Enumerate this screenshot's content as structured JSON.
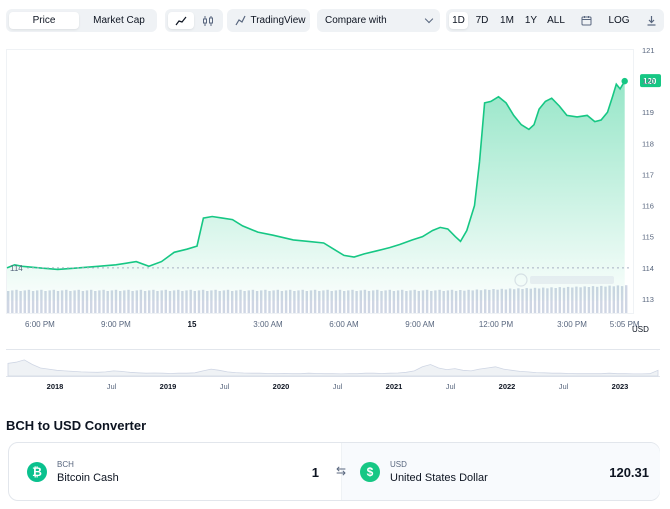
{
  "toolbar": {
    "price_tab": "Price",
    "market_cap_tab": "Market Cap",
    "line_icon": "line-chart-icon",
    "candle_icon": "candlestick-icon",
    "tradingview_label": "TradingView",
    "tradingview_icon": "trend-icon",
    "compare_label": "Compare with",
    "ranges": [
      "1D",
      "7D",
      "1M",
      "1Y",
      "ALL"
    ],
    "active_range": "1D",
    "calendar_icon": "calendar-icon",
    "log_label": "LOG",
    "download_icon": "download-icon"
  },
  "colors": {
    "line": "#16c784",
    "area": "#16c784",
    "volume": "#cfd6e4",
    "axis_text": "#58667e"
  },
  "chart_data": {
    "type": "area",
    "x_tick_labels": [
      "6:00 PM",
      "9:00 PM",
      "15",
      "3:00 AM",
      "6:00 AM",
      "9:00 AM",
      "12:00 PM",
      "3:00 PM",
      "5:05 PM"
    ],
    "x_tick_hours": [
      0,
      3,
      6,
      9,
      12,
      15,
      18,
      21,
      23.08
    ],
    "x_range_hours": [
      -1.3,
      23.25
    ],
    "y_tick_labels": [
      "121",
      "120",
      "119",
      "118",
      "117",
      "116",
      "115",
      "114",
      "113"
    ],
    "ylim": [
      112.55,
      121.0
    ],
    "y_unit": "USD",
    "open_price": 114.0,
    "open_label": "114",
    "last_price": 120.0,
    "last_label": "120",
    "series": [
      {
        "values": [
          [
            -1.3,
            114.0
          ],
          [
            -1.0,
            114.1
          ],
          [
            -0.7,
            114.05
          ],
          [
            0.0,
            114.0
          ],
          [
            0.7,
            113.95
          ],
          [
            1.5,
            114.0
          ],
          [
            2.3,
            114.05
          ],
          [
            3.0,
            114.1
          ],
          [
            3.8,
            114.2
          ],
          [
            4.3,
            114.05
          ],
          [
            4.8,
            114.2
          ],
          [
            5.3,
            114.5
          ],
          [
            5.8,
            114.6
          ],
          [
            6.2,
            114.7
          ],
          [
            6.45,
            115.6
          ],
          [
            6.8,
            115.65
          ],
          [
            7.2,
            115.6
          ],
          [
            7.6,
            115.55
          ],
          [
            8.0,
            115.35
          ],
          [
            8.6,
            115.15
          ],
          [
            9.2,
            115.05
          ],
          [
            10.0,
            114.9
          ],
          [
            10.6,
            114.85
          ],
          [
            11.2,
            114.8
          ],
          [
            11.6,
            114.6
          ],
          [
            12.0,
            114.4
          ],
          [
            12.4,
            114.35
          ],
          [
            12.8,
            114.45
          ],
          [
            13.3,
            114.55
          ],
          [
            13.8,
            114.65
          ],
          [
            14.2,
            114.75
          ],
          [
            14.7,
            114.9
          ],
          [
            15.1,
            115.0
          ],
          [
            15.5,
            115.2
          ],
          [
            15.8,
            115.3
          ],
          [
            16.1,
            115.25
          ],
          [
            16.4,
            115.0
          ],
          [
            16.6,
            114.85
          ],
          [
            16.85,
            115.2
          ],
          [
            17.15,
            116.0
          ],
          [
            17.35,
            117.4
          ],
          [
            17.55,
            119.3
          ],
          [
            17.8,
            119.35
          ],
          [
            18.1,
            119.5
          ],
          [
            18.4,
            119.3
          ],
          [
            18.7,
            118.9
          ],
          [
            19.0,
            118.6
          ],
          [
            19.3,
            118.45
          ],
          [
            19.5,
            118.6
          ],
          [
            19.7,
            119.1
          ],
          [
            19.95,
            119.35
          ],
          [
            20.2,
            119.45
          ],
          [
            20.5,
            119.2
          ],
          [
            20.8,
            118.9
          ],
          [
            21.2,
            118.85
          ],
          [
            21.6,
            118.9
          ],
          [
            21.9,
            118.7
          ],
          [
            22.15,
            118.75
          ],
          [
            22.4,
            119.0
          ],
          [
            22.6,
            119.5
          ],
          [
            22.75,
            119.9
          ],
          [
            22.9,
            119.75
          ],
          [
            23.08,
            120.0
          ]
        ]
      }
    ],
    "volume_note": "",
    "navigator": {
      "labels": [
        "2018",
        "Jul",
        "2019",
        "Jul",
        "2020",
        "Jul",
        "2021",
        "Jul",
        "2022",
        "Jul",
        "2023"
      ],
      "values": [
        0.55,
        0.6,
        0.7,
        0.5,
        0.35,
        0.3,
        0.25,
        0.22,
        0.2,
        0.18,
        0.17,
        0.16,
        0.18,
        0.22,
        0.2,
        0.16,
        0.14,
        0.12,
        0.13,
        0.12,
        0.11,
        0.12,
        0.12,
        0.14,
        0.22,
        0.3,
        0.25,
        0.18,
        0.15,
        0.13,
        0.12,
        0.12,
        0.11,
        0.1,
        0.11,
        0.1,
        0.1,
        0.12,
        0.11,
        0.1,
        0.1,
        0.09,
        0.1,
        0.1,
        0.12,
        0.12,
        0.11,
        0.12,
        0.13,
        0.16,
        0.22,
        0.4,
        0.5,
        0.35,
        0.28,
        0.32,
        0.25,
        0.22,
        0.3,
        0.35,
        0.4,
        0.3,
        0.25,
        0.2,
        0.18,
        0.15,
        0.14,
        0.12,
        0.12,
        0.11,
        0.1,
        0.1,
        0.1,
        0.1,
        0.12,
        0.1,
        0.1,
        0.09,
        0.09,
        0.1,
        0.25
      ]
    }
  },
  "converter": {
    "title": "BCH to USD Converter",
    "from_code": "BCH",
    "from_name": "Bitcoin Cash",
    "from_amount": "1",
    "from_icon": "bitcoin-cash-icon",
    "from_symbol": "₿",
    "swap_icon": "swap-arrows-icon",
    "swap_symbol": "⇆",
    "to_code": "USD",
    "to_name": "United States Dollar",
    "to_amount": "120.31",
    "to_icon": "dollar-icon",
    "to_symbol": "$"
  }
}
